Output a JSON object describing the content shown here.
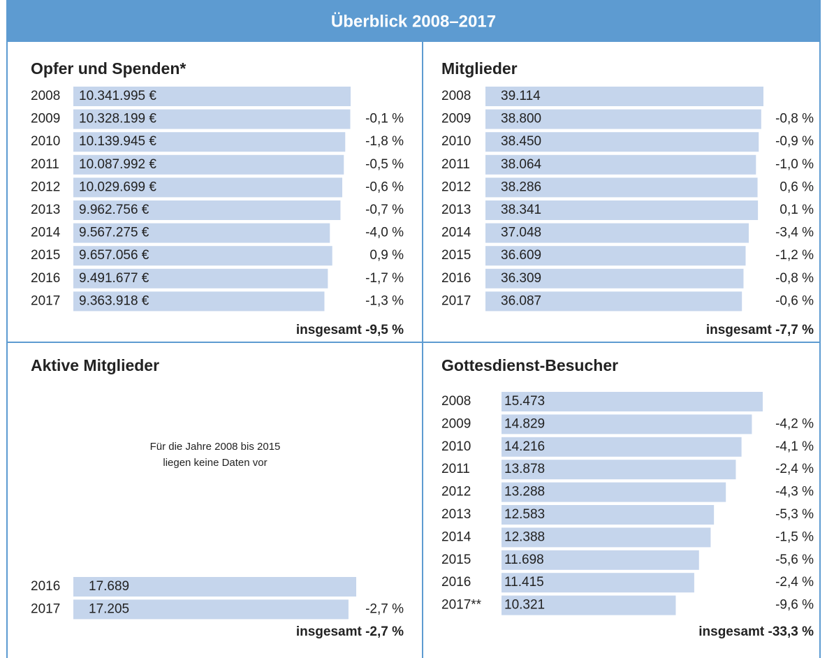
{
  "title": "Überblick 2008–2017",
  "chart_data": [
    {
      "type": "bar",
      "title": "Opfer und Spenden*",
      "categories": [
        "2008",
        "2009",
        "2010",
        "2011",
        "2012",
        "2013",
        "2014",
        "2015",
        "2016",
        "2017"
      ],
      "values": [
        10341995,
        10328199,
        10139945,
        10087992,
        10029699,
        9962756,
        9567275,
        9657056,
        9491677,
        9363918
      ],
      "value_labels": [
        "10.341.995 €",
        "10.328.199 €",
        "10.139.945 €",
        "10.087.992 €",
        "10.029.699 €",
        "9.962.756 €",
        "9.567.275 €",
        "9.657.056 €",
        "9.491.677 €",
        "9.363.918 €"
      ],
      "changes": [
        null,
        "-0,1 %",
        "-1,8 %",
        "-0,5 %",
        "-0,6 %",
        "-0,7 %",
        "-4,0 %",
        "0,9 %",
        "-1,7 %",
        "-1,3 %"
      ],
      "total": "insgesamt -9,5 %",
      "color": "#c5d5ec"
    },
    {
      "type": "bar",
      "title": "Mitglieder",
      "categories": [
        "2008",
        "2009",
        "2010",
        "2011",
        "2012",
        "2013",
        "2014",
        "2015",
        "2016",
        "2017"
      ],
      "values": [
        39114,
        38800,
        38450,
        38064,
        38286,
        38341,
        37048,
        36609,
        36309,
        36087
      ],
      "value_labels": [
        "39.114",
        "38.800",
        "38.450",
        "38.064",
        "38.286",
        "38.341",
        "37.048",
        "36.609",
        "36.309",
        "36.087"
      ],
      "changes": [
        null,
        "-0,8 %",
        "-0,9 %",
        "-1,0 %",
        "0,6 %",
        "0,1 %",
        "-3,4 %",
        "-1,2 %",
        "-0,8 %",
        "-0,6 %"
      ],
      "total": "insgesamt -7,7 %",
      "color": "#c5d5ec"
    },
    {
      "type": "bar",
      "title": "Aktive Mitglieder",
      "note": [
        "Für die Jahre 2008 bis 2015",
        "liegen keine Daten vor"
      ],
      "categories": [
        "2016",
        "2017"
      ],
      "values": [
        17689,
        17205
      ],
      "value_labels": [
        "17.689",
        "17.205"
      ],
      "changes": [
        null,
        "-2,7 %"
      ],
      "total": "insgesamt -2,7 %",
      "color": "#c5d5ec"
    },
    {
      "type": "bar",
      "title": "Gottesdienst-Besucher",
      "categories": [
        "2008",
        "2009",
        "2010",
        "2011",
        "2012",
        "2013",
        "2014",
        "2015",
        "2016",
        "2017**"
      ],
      "values": [
        15473,
        14829,
        14216,
        13878,
        13288,
        12583,
        12388,
        11698,
        11415,
        10321
      ],
      "value_labels": [
        "15.473",
        "14.829",
        "14.216",
        "13.878",
        "13.288",
        "12.583",
        "12.388",
        "11.698",
        "11.415",
        "10.321"
      ],
      "changes": [
        null,
        "-4,2 %",
        "-4,1 %",
        "-2,4 %",
        "-4,3 %",
        "-5,3 %",
        "-1,5 %",
        "-5,6 %",
        "-2,4 %",
        "-9,6 %"
      ],
      "total": "insgesamt -33,3 %",
      "color": "#c5d5ec"
    }
  ]
}
